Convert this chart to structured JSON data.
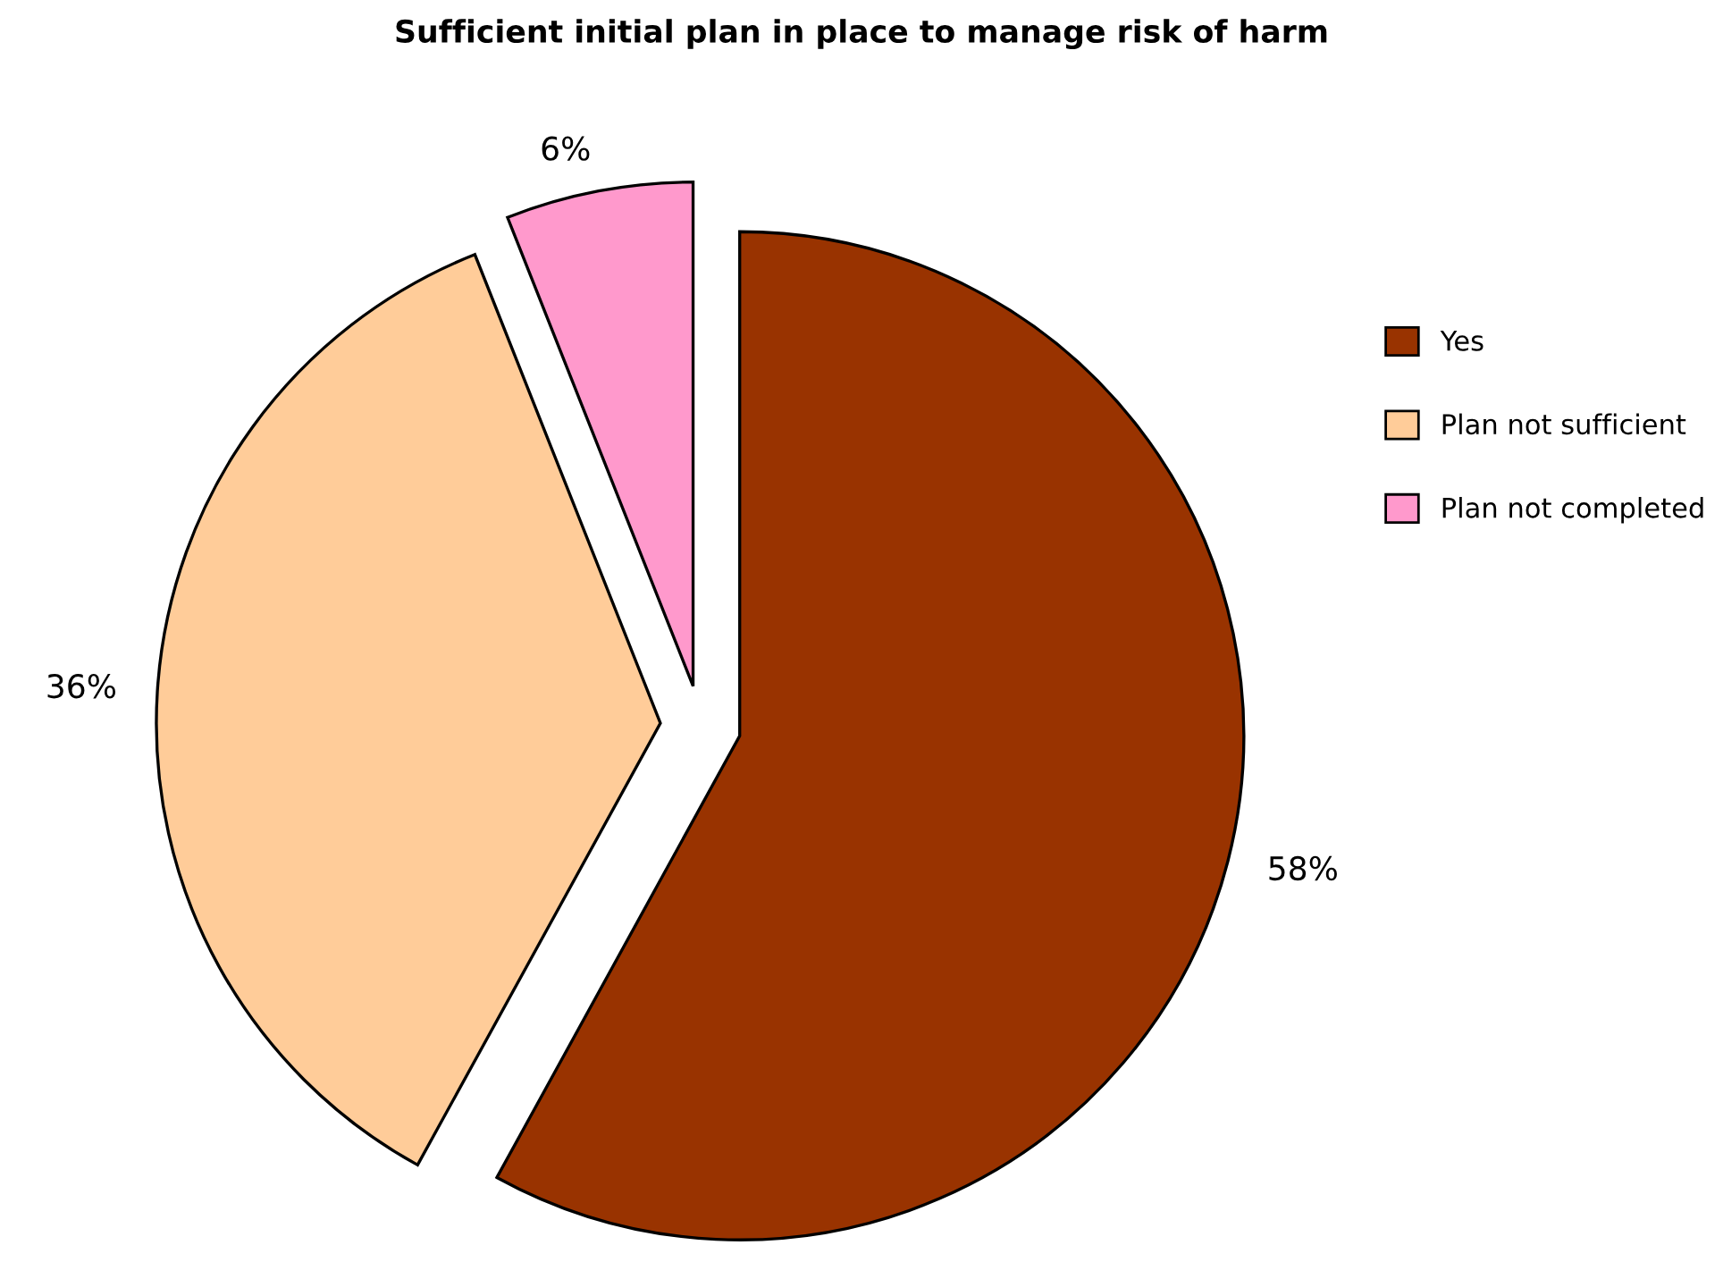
{
  "chart_data": {
    "type": "pie",
    "title": "Sufficient initial plan in place to manage risk of harm",
    "categories": [
      "Yes",
      "Plan not sufficient",
      "Plan not completed"
    ],
    "values": [
      58,
      36,
      6
    ],
    "colors": [
      "#993300",
      "#ffcc99",
      "#ff99cc"
    ],
    "value_labels": [
      "58%",
      "36%",
      "6%"
    ],
    "legend": "right"
  }
}
